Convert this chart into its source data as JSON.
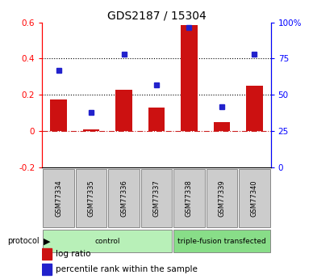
{
  "title": "GDS2187 / 15304",
  "samples": [
    "GSM77334",
    "GSM77335",
    "GSM77336",
    "GSM77337",
    "GSM77338",
    "GSM77339",
    "GSM77340"
  ],
  "log_ratio": [
    0.175,
    0.01,
    0.23,
    0.13,
    0.585,
    0.05,
    0.25
  ],
  "percentile_rank": [
    0.67,
    0.38,
    0.78,
    0.57,
    0.965,
    0.42,
    0.78
  ],
  "groups": [
    {
      "label": "control",
      "start": 0,
      "end": 4,
      "color": "#b8f0b8"
    },
    {
      "label": "triple-fusion transfected",
      "start": 4,
      "end": 7,
      "color": "#88dd88"
    }
  ],
  "bar_color": "#cc1111",
  "marker_color": "#2222cc",
  "left_ylim": [
    -0.2,
    0.6
  ],
  "right_ylim": [
    0,
    1.0
  ],
  "left_yticks": [
    -0.2,
    0.0,
    0.2,
    0.4,
    0.6
  ],
  "left_yticklabels": [
    "-0.2",
    "0",
    "0.2",
    "0.4",
    "0.6"
  ],
  "right_yticks": [
    0,
    0.25,
    0.5,
    0.75,
    1.0
  ],
  "right_yticklabels": [
    "0",
    "25",
    "50",
    "75",
    "100%"
  ],
  "bar_width": 0.5,
  "marker_size": 5,
  "title_fontsize": 10,
  "tick_fontsize": 7.5,
  "label_fontsize": 7,
  "legend_fontsize": 7.5
}
